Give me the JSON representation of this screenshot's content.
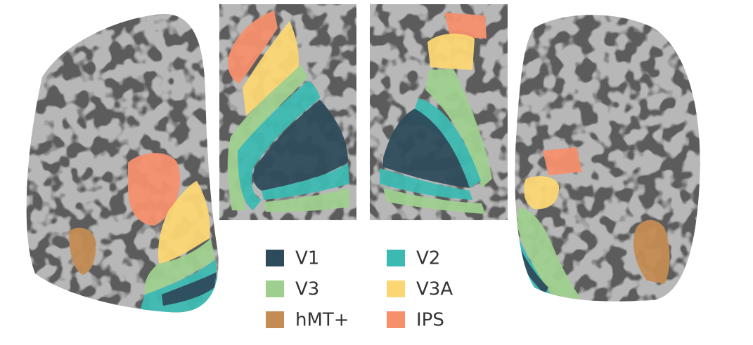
{
  "legend": {
    "items": [
      {
        "label": "V1",
        "color": "#2e4b5b"
      },
      {
        "label": "V2",
        "color": "#3cbab2"
      },
      {
        "label": "V3",
        "color": "#9fcf8e"
      },
      {
        "label": "V3A",
        "color": "#fbd673"
      },
      {
        "label": "hMT+",
        "color": "#c48b52"
      },
      {
        "label": "IPS",
        "color": "#f58f6c"
      }
    ]
  }
}
